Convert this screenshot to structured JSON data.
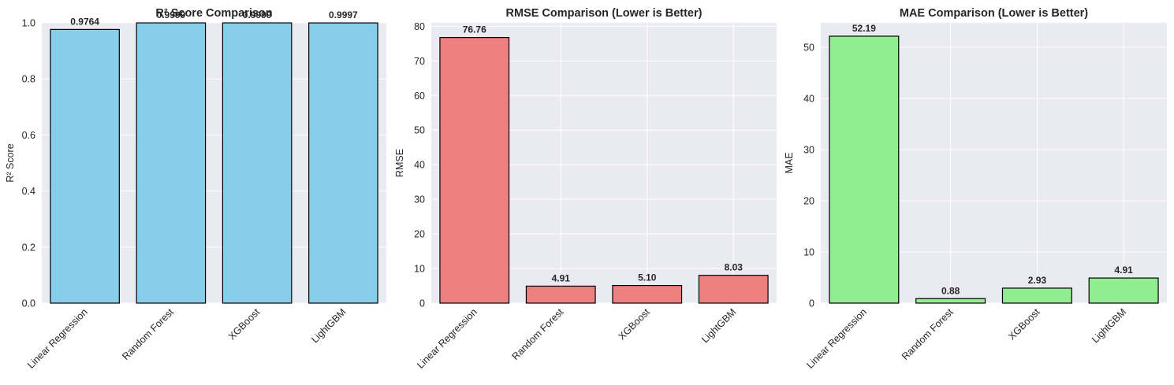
{
  "chart_data": [
    {
      "type": "bar",
      "title": "R² Score Comparison",
      "xlabel": "",
      "ylabel": "R² Score",
      "categories": [
        "Linear Regression",
        "Random Forest",
        "XGBoost",
        "LightGBM"
      ],
      "values": [
        0.9764,
        0.9999,
        0.9999,
        0.9997
      ],
      "value_labels": [
        "0.9764",
        "0.9999",
        "0.9999",
        "0.9997"
      ],
      "ylim": [
        0,
        1.0
      ],
      "yticks": [
        0.0,
        0.2,
        0.4,
        0.6,
        0.8,
        1.0
      ],
      "ytick_labels": [
        "0.0",
        "0.2",
        "0.4",
        "0.6",
        "0.8",
        "1.0"
      ],
      "bar_color": "#87ceeb",
      "edge_color": "#000000",
      "grid": true
    },
    {
      "type": "bar",
      "title": "RMSE Comparison (Lower is Better)",
      "xlabel": "",
      "ylabel": "RMSE",
      "categories": [
        "Linear Regression",
        "Random Forest",
        "XGBoost",
        "LightGBM"
      ],
      "values": [
        76.76,
        4.91,
        5.1,
        8.03
      ],
      "value_labels": [
        "76.76",
        "4.91",
        "5.10",
        "8.03"
      ],
      "ylim": [
        0,
        81
      ],
      "yticks": [
        0,
        10,
        20,
        30,
        40,
        50,
        60,
        70,
        80
      ],
      "ytick_labels": [
        "0",
        "10",
        "20",
        "30",
        "40",
        "50",
        "60",
        "70",
        "80"
      ],
      "bar_color": "#f08080",
      "edge_color": "#000000",
      "grid": true
    },
    {
      "type": "bar",
      "title": "MAE Comparison (Lower is Better)",
      "xlabel": "",
      "ylabel": "MAE",
      "categories": [
        "Linear Regression",
        "Random Forest",
        "XGBoost",
        "LightGBM"
      ],
      "values": [
        52.19,
        0.88,
        2.93,
        4.91
      ],
      "value_labels": [
        "52.19",
        "0.88",
        "2.93",
        "4.91"
      ],
      "ylim": [
        0,
        54.8
      ],
      "yticks": [
        0,
        10,
        20,
        30,
        40,
        50
      ],
      "ytick_labels": [
        "0",
        "10",
        "20",
        "30",
        "40",
        "50"
      ],
      "bar_color": "#90ee90",
      "edge_color": "#000000",
      "grid": true
    }
  ],
  "style": {
    "axes_background": "#eaeaf2",
    "grid_color": "#ffffff",
    "text_color": "#262626"
  }
}
